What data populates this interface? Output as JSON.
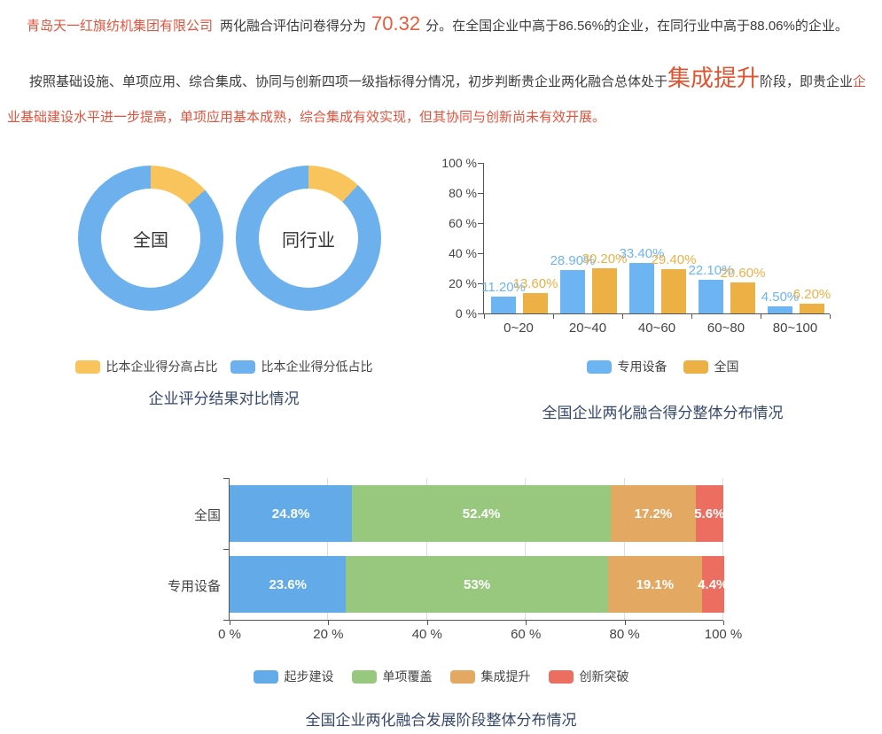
{
  "header": {
    "company": "青岛天一红旗纺机集团有限公司",
    "score_prefix": "两化融合评估问卷得分为",
    "score": "70.32",
    "score_suffix": "分。在全国企业中高于86.56%的企业，在同行业中高于88.06%的企业。",
    "p2_dark1": "按照基础设施、单项应用、综合集成、协同与创新四项一级指标得分情况，初步判断贵企业两化融合总体处于",
    "p2_stage": "集成提升",
    "p2_dark2": "阶段，即贵企业",
    "p2_red": "企业基础建设水平进一步提高，单项应用基本成熟，综合集成有效实现，但其协同与创新尚未有效开展。"
  },
  "titles": {
    "donut": "企业评分结果对比情况"
  },
  "colors": {
    "donut_blue": "#6cb1ee",
    "donut_yellow": "#f9c45c",
    "bar_blue": "#6db4f2",
    "bar_orange": "#ecb045",
    "stage_blue": "#62abe8",
    "stage_green": "#97c87d",
    "stage_orange": "#e3a963",
    "stage_red": "#ec6e60",
    "title_text": "#36486a",
    "coral_text": "#e0543e",
    "dark_text": "#3b3b3b"
  },
  "chart_data": [
    {
      "id": "donut-national",
      "type": "pie",
      "donut": true,
      "center_label": "全国",
      "slices": [
        {
          "name": "比本企业得分高占比",
          "value": 13.44,
          "color": "#f9c45c"
        },
        {
          "name": "比本企业得分低占比",
          "value": 86.56,
          "color": "#6cb1ee"
        }
      ]
    },
    {
      "id": "donut-industry",
      "type": "pie",
      "donut": true,
      "center_label": "同行业",
      "slices": [
        {
          "name": "比本企业得分高占比",
          "value": 11.94,
          "color": "#f9c45c"
        },
        {
          "name": "比本企业得分低占比",
          "value": 88.06,
          "color": "#6cb1ee"
        }
      ]
    },
    {
      "id": "score-distribution",
      "type": "bar",
      "title": "全国企业两化融合得分整体分布情况",
      "categories": [
        "0~20",
        "20~40",
        "40~60",
        "60~80",
        "80~100"
      ],
      "series": [
        {
          "name": "专用设备",
          "color": "#6db4f2",
          "values": [
            11.2,
            28.9,
            33.4,
            22.1,
            4.5
          ],
          "labels": [
            "11.20%",
            "28.90%",
            "33.40%",
            "22.10%",
            "4.50%"
          ]
        },
        {
          "name": "全国",
          "color": "#ecb045",
          "values": [
            13.6,
            30.2,
            29.4,
            20.6,
            6.2
          ],
          "labels": [
            "13.60%",
            "30.20%",
            "29.40%",
            "20.60%",
            "6.20%"
          ]
        }
      ],
      "ylim": [
        0,
        100
      ],
      "yticks": [
        "0 %",
        "20 %",
        "40 %",
        "60 %",
        "80 %",
        "100 %"
      ],
      "grid": false,
      "legend_position": "bottom"
    },
    {
      "id": "stage-distribution",
      "type": "stacked-bar-horizontal",
      "title": "全国企业两化融合发展阶段整体分布情况",
      "categories": [
        "全国",
        "专用设备"
      ],
      "series": [
        {
          "name": "起步建设",
          "color": "#62abe8",
          "values": [
            24.8,
            23.6
          ],
          "labels": [
            "24.8%",
            "23.6%"
          ]
        },
        {
          "name": "单项覆盖",
          "color": "#97c87d",
          "values": [
            52.4,
            53
          ],
          "labels": [
            "52.4%",
            "53%"
          ]
        },
        {
          "name": "集成提升",
          "color": "#e3a963",
          "values": [
            17.2,
            19.1
          ],
          "labels": [
            "17.2%",
            "19.1%"
          ]
        },
        {
          "name": "创新突破",
          "color": "#ec6e60",
          "values": [
            5.6,
            4.4
          ],
          "labels": [
            "5.6%",
            "4.4%"
          ]
        }
      ],
      "xlim": [
        0,
        100
      ],
      "xticks": [
        "0 %",
        "20 %",
        "40 %",
        "60 %",
        "80 %",
        "100 %"
      ],
      "grid": true,
      "legend_position": "bottom"
    }
  ]
}
